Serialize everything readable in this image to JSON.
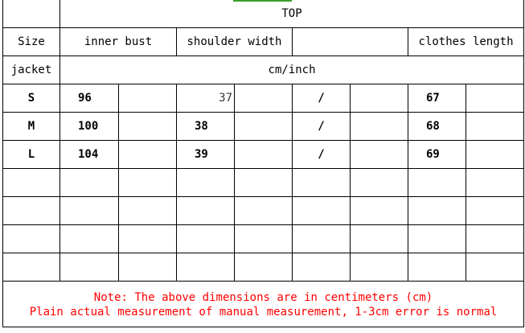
{
  "header": {
    "title": "TOP"
  },
  "columns": {
    "size": "Size",
    "inner_bust": "inner bust",
    "shoulder_width": "shoulder width",
    "blank": "",
    "clothes_length": "clothes length"
  },
  "unit_row": {
    "label": "jacket",
    "unit": "cm/inch"
  },
  "rows": [
    {
      "size": "S",
      "inner_bust": "96",
      "shoulder_width": "37",
      "other": "/",
      "clothes_length": "67"
    },
    {
      "size": "M",
      "inner_bust": "100",
      "shoulder_width": "38",
      "other": "/",
      "clothes_length": "68"
    },
    {
      "size": "L",
      "inner_bust": "104",
      "shoulder_width": "39",
      "other": "/",
      "clothes_length": "69"
    }
  ],
  "note": {
    "line1": "Note: The above dimensions are in centimeters (cm)",
    "line2": "Plain actual measurement of manual measurement, 1-3cm error is normal",
    "color": "#ff0000"
  }
}
